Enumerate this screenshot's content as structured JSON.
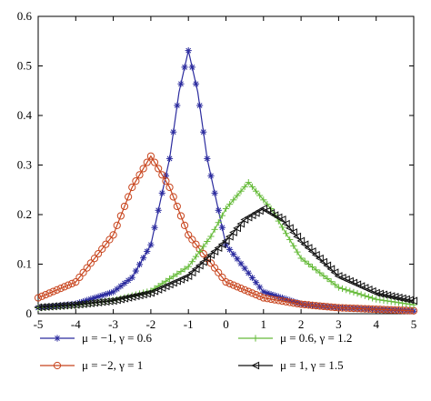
{
  "chart_data": {
    "type": "line",
    "title": "",
    "xlabel": "",
    "ylabel": "",
    "xlim": [
      -5,
      5
    ],
    "ylim": [
      0,
      0.6
    ],
    "grid": false,
    "legend_position": "bottom",
    "x_ticks": [
      "-5",
      "-4",
      "-3",
      "-2",
      "-1",
      "0",
      "1",
      "2",
      "3",
      "4",
      "5"
    ],
    "y_ticks": [
      "0",
      "0.1",
      "0.2",
      "0.3",
      "0.4",
      "0.5",
      "0.6"
    ],
    "x_tick_values": [
      -5,
      -4,
      -3,
      -2,
      -1,
      0,
      1,
      2,
      3,
      4,
      5
    ],
    "y_tick_values": [
      0,
      0.1,
      0.2,
      0.3,
      0.4,
      0.5,
      0.6
    ],
    "series": [
      {
        "name": "μ = −1, γ = 0.6",
        "color": "#2b2b9e",
        "marker": "asterisk",
        "x": [
          -5,
          -4,
          -3,
          -2.5,
          -2,
          -1.5,
          -1.25,
          -1,
          -0.75,
          -0.5,
          0,
          1,
          2,
          3,
          4,
          5
        ],
        "y": [
          0.012,
          0.02,
          0.044,
          0.073,
          0.139,
          0.313,
          0.447,
          0.531,
          0.447,
          0.313,
          0.139,
          0.044,
          0.02,
          0.012,
          0.008,
          0.005
        ]
      },
      {
        "name": "μ = −2, γ = 1",
        "color": "#c8451e",
        "marker": "circle",
        "x": [
          -5,
          -4,
          -3,
          -2.5,
          -2,
          -1.5,
          -1,
          0,
          1,
          2,
          3,
          4,
          5
        ],
        "y": [
          0.032,
          0.064,
          0.159,
          0.255,
          0.318,
          0.255,
          0.159,
          0.064,
          0.032,
          0.019,
          0.012,
          0.009,
          0.006
        ]
      },
      {
        "name": "μ = 0.6, γ = 1.2",
        "color": "#66bb3a",
        "marker": "plus",
        "x": [
          -5,
          -4,
          -3,
          -2,
          -1,
          -0.4,
          0,
          0.6,
          1.2,
          2,
          3,
          4,
          5
        ],
        "y": [
          0.012,
          0.017,
          0.027,
          0.046,
          0.095,
          0.156,
          0.212,
          0.265,
          0.212,
          0.112,
          0.053,
          0.029,
          0.018
        ]
      },
      {
        "name": "μ = 1, γ = 1.5",
        "color": "#111111",
        "marker": "triangle-left",
        "x": [
          -5,
          -4,
          -3,
          -2,
          -1,
          0,
          0.5,
          1,
          1.5,
          2,
          3,
          4,
          5
        ],
        "y": [
          0.013,
          0.018,
          0.026,
          0.042,
          0.076,
          0.147,
          0.19,
          0.212,
          0.19,
          0.147,
          0.076,
          0.042,
          0.026
        ]
      }
    ]
  }
}
